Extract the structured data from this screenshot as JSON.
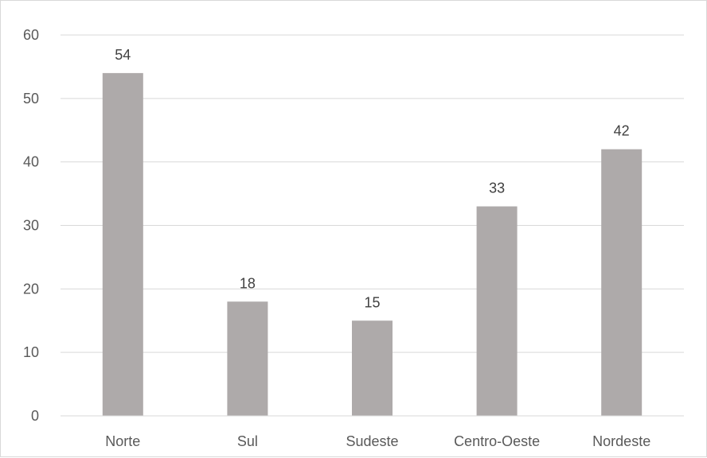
{
  "chart_data": {
    "type": "bar",
    "categories": [
      "Norte",
      "Sul",
      "Sudeste",
      "Centro-Oeste",
      "Nordeste"
    ],
    "values": [
      54,
      18,
      15,
      33,
      42
    ],
    "data_labels": [
      "54",
      "18",
      "15",
      "33",
      "42"
    ],
    "title": "",
    "xlabel": "",
    "ylabel": "",
    "ylim": [
      0,
      60
    ],
    "yticks": [
      0,
      10,
      20,
      30,
      40,
      50,
      60
    ],
    "ytick_labels": [
      "0",
      "10",
      "20",
      "30",
      "40",
      "50",
      "60"
    ],
    "grid": true,
    "legend": "none",
    "colors": {
      "bar": "#aeaaaa",
      "grid": "#d9d9d9",
      "axis": "#d9d9d9",
      "tick_text": "#595959",
      "label_text": "#404040"
    }
  }
}
